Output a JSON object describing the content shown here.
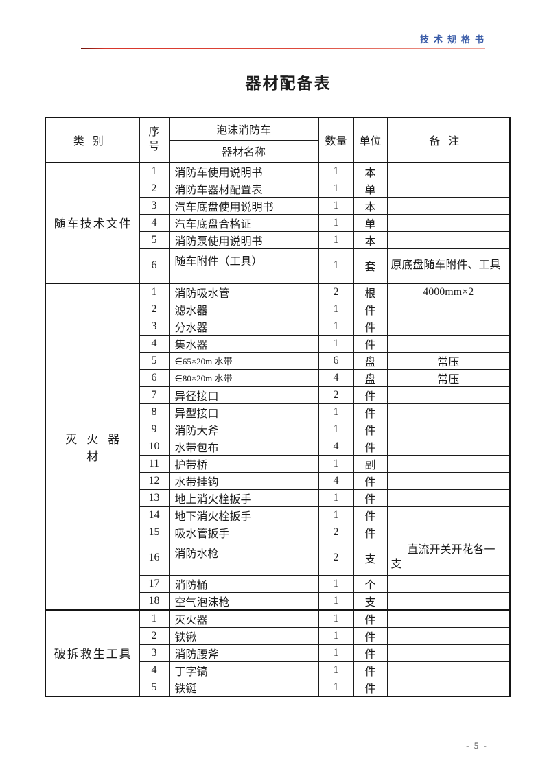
{
  "page": {
    "header_label": "技术规格书",
    "title": "器材配备表",
    "page_number": "- 5 -",
    "accent_blue": "#3a5ca8",
    "accent_red": "#d8352a"
  },
  "table": {
    "headers": {
      "category": "类别",
      "serial_line1": "序",
      "serial_line2": "号",
      "vehicle": "泡沫消防车",
      "equipment_name": "器材名称",
      "quantity": "数量",
      "unit": "单位",
      "remark": "备注"
    },
    "sections": [
      {
        "category": "随车技术文件",
        "spaced": false,
        "rows": [
          {
            "no": "1",
            "name": "消防车使用说明书",
            "qty": "1",
            "unit": "本",
            "remark": ""
          },
          {
            "no": "2",
            "name": "消防车器材配置表",
            "qty": "1",
            "unit": "单",
            "remark": ""
          },
          {
            "no": "3",
            "name": "汽车底盘使用说明书",
            "qty": "1",
            "unit": "本",
            "remark": ""
          },
          {
            "no": "4",
            "name": "汽车底盘合格证",
            "qty": "1",
            "unit": "单",
            "remark": ""
          },
          {
            "no": "5",
            "name": "消防泵使用说明书",
            "qty": "1",
            "unit": "本",
            "remark": ""
          },
          {
            "no": "6",
            "name": "随车附件（工具）",
            "qty": "1",
            "unit": "套",
            "remark": "原底盘随车附件、工具",
            "tall": true,
            "remark_style": "wrap"
          }
        ]
      },
      {
        "category": "灭火器材",
        "spaced": true,
        "rows": [
          {
            "no": "1",
            "name": "消防吸水管",
            "qty": "2",
            "unit": "根",
            "remark": "4000mm×2"
          },
          {
            "no": "2",
            "name": "滤水器",
            "qty": "1",
            "unit": "件",
            "remark": ""
          },
          {
            "no": "3",
            "name": "分水器",
            "qty": "1",
            "unit": "件",
            "remark": ""
          },
          {
            "no": "4",
            "name": "集水器",
            "qty": "1",
            "unit": "件",
            "remark": ""
          },
          {
            "no": "5",
            "name": "∈65×20m 水带",
            "qty": "6",
            "unit": "盘",
            "remark": "常压",
            "small": true
          },
          {
            "no": "6",
            "name": "∈80×20m 水带",
            "qty": "4",
            "unit": "盘",
            "remark": "常压",
            "small": true
          },
          {
            "no": "7",
            "name": "异径接口",
            "qty": "2",
            "unit": "件",
            "remark": ""
          },
          {
            "no": "8",
            "name": "异型接口",
            "qty": "1",
            "unit": "件",
            "remark": ""
          },
          {
            "no": "9",
            "name": "消防大斧",
            "qty": "1",
            "unit": "件",
            "remark": ""
          },
          {
            "no": "10",
            "name": "水带包布",
            "qty": "4",
            "unit": "件",
            "remark": ""
          },
          {
            "no": "11",
            "name": "护带桥",
            "qty": "1",
            "unit": "副",
            "remark": ""
          },
          {
            "no": "12",
            "name": "水带挂钩",
            "qty": "4",
            "unit": "件",
            "remark": ""
          },
          {
            "no": "13",
            "name": "地上消火栓扳手",
            "qty": "1",
            "unit": "件",
            "remark": ""
          },
          {
            "no": "14",
            "name": "地下消火栓扳手",
            "qty": "1",
            "unit": "件",
            "remark": ""
          },
          {
            "no": "15",
            "name": "吸水管扳手",
            "qty": "2",
            "unit": "件",
            "remark": ""
          },
          {
            "no": "16",
            "name": "消防水枪",
            "qty": "2",
            "unit": "支",
            "remark": "直流开关开花各一支",
            "tall": true,
            "remark_style": "indent"
          },
          {
            "no": "17",
            "name": "消防桶",
            "qty": "1",
            "unit": "个",
            "remark": ""
          },
          {
            "no": "18",
            "name": "空气泡沫枪",
            "qty": "1",
            "unit": "支",
            "remark": ""
          }
        ]
      },
      {
        "category": "破拆救生工具",
        "spaced": false,
        "rows": [
          {
            "no": "1",
            "name": "灭火器",
            "qty": "1",
            "unit": "件",
            "remark": ""
          },
          {
            "no": "2",
            "name": "铁锹",
            "qty": "1",
            "unit": "件",
            "remark": ""
          },
          {
            "no": "3",
            "name": "消防腰斧",
            "qty": "1",
            "unit": "件",
            "remark": ""
          },
          {
            "no": "4",
            "name": "丁字镐",
            "qty": "1",
            "unit": "件",
            "remark": ""
          },
          {
            "no": "5",
            "name": "铁铤",
            "qty": "1",
            "unit": "件",
            "remark": ""
          }
        ]
      }
    ]
  }
}
